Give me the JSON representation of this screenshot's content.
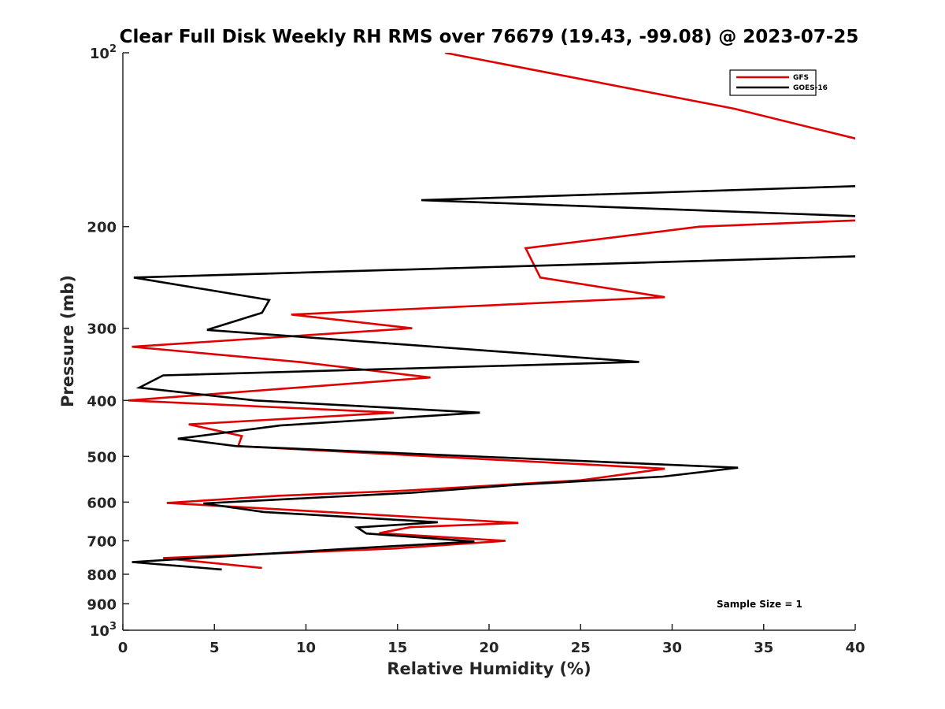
{
  "chart_data": {
    "type": "line",
    "title": "Clear Full Disk Weekly RH RMS over 76679 (19.43, -99.08) @ 2023-07-25",
    "xlabel": "Relative Humidity (%)",
    "ylabel": "Pressure (mb)",
    "xlim": [
      0,
      40
    ],
    "ylim": [
      100,
      1000
    ],
    "y_scale": "log",
    "y_reversed": true,
    "grid": false,
    "legend_position": "top-right",
    "annotation": "Sample Size = 1",
    "x_ticks": [
      0,
      5,
      10,
      15,
      20,
      25,
      30,
      35,
      40
    ],
    "x_tick_labels": [
      "0",
      "5",
      "10",
      "15",
      "20",
      "25",
      "30",
      "35",
      "40"
    ],
    "y_ticks": [
      100,
      200,
      300,
      400,
      500,
      600,
      700,
      800,
      900,
      1000
    ],
    "y_tick_labels": [
      {
        "base": "10",
        "sup": "2"
      },
      {
        "base": "200",
        "sup": ""
      },
      {
        "base": "300",
        "sup": ""
      },
      {
        "base": "400",
        "sup": ""
      },
      {
        "base": "500",
        "sup": ""
      },
      {
        "base": "600",
        "sup": ""
      },
      {
        "base": "700",
        "sup": ""
      },
      {
        "base": "800",
        "sup": ""
      },
      {
        "base": "900",
        "sup": ""
      },
      {
        "base": "10",
        "sup": "3"
      }
    ],
    "series": [
      {
        "name": "GFS",
        "color": "#e00000",
        "points": [
          [
            17.6,
            100
          ],
          [
            33.4,
            125
          ],
          [
            40.5,
            142
          ],
          [
            40.2,
            195
          ],
          [
            31.5,
            200
          ],
          [
            22.0,
            218
          ],
          [
            22.8,
            245
          ],
          [
            29.6,
            265
          ],
          [
            9.2,
            284
          ],
          [
            15.8,
            300
          ],
          [
            0.5,
            323
          ],
          [
            9.6,
            343
          ],
          [
            16.8,
            365
          ],
          [
            0.3,
            400
          ],
          [
            14.8,
            420
          ],
          [
            3.6,
            440
          ],
          [
            6.5,
            461
          ],
          [
            6.3,
            480
          ],
          [
            29.6,
            525
          ],
          [
            25.0,
            550
          ],
          [
            15.5,
            573
          ],
          [
            8.5,
            585
          ],
          [
            2.4,
            602
          ],
          [
            21.6,
            652
          ],
          [
            15.7,
            663
          ],
          [
            14.0,
            679
          ],
          [
            20.9,
            700
          ],
          [
            14.8,
            722
          ],
          [
            2.2,
            750
          ],
          [
            7.6,
            780
          ]
        ]
      },
      {
        "name": "GOES-16",
        "color": "#000000",
        "points": [
          [
            40.5,
            170
          ],
          [
            16.3,
            180
          ],
          [
            40.5,
            192
          ],
          [
            40.5,
            225
          ],
          [
            0.6,
            245
          ],
          [
            8.0,
            268
          ],
          [
            7.6,
            282
          ],
          [
            4.6,
            302
          ],
          [
            28.2,
            343
          ],
          [
            2.2,
            362
          ],
          [
            0.9,
            380
          ],
          [
            7.2,
            400
          ],
          [
            19.5,
            420
          ],
          [
            8.6,
            442
          ],
          [
            3.0,
            466
          ],
          [
            6.2,
            480
          ],
          [
            33.6,
            523
          ],
          [
            29.5,
            542
          ],
          [
            21.5,
            560
          ],
          [
            15.8,
            578
          ],
          [
            4.4,
            603
          ],
          [
            7.7,
            624
          ],
          [
            17.2,
            650
          ],
          [
            12.8,
            664
          ],
          [
            13.3,
            680
          ],
          [
            19.2,
            702
          ],
          [
            12.5,
            722
          ],
          [
            0.5,
            762
          ],
          [
            5.4,
            785
          ]
        ]
      }
    ]
  }
}
